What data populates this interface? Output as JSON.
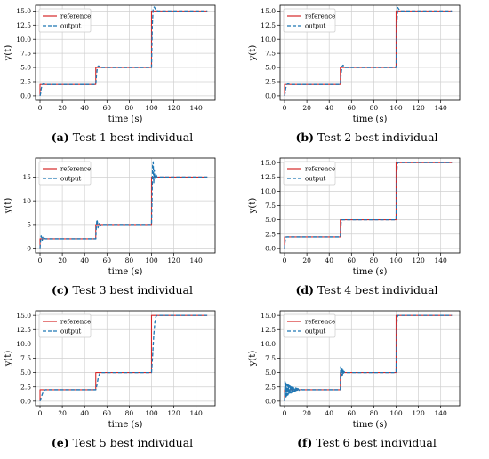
{
  "chart_data": [
    {
      "type": "line",
      "caption_tag": "(a)",
      "caption_text": "Test 1 best individual",
      "xlabel": "time (s)",
      "ylabel": "y(t)",
      "xlim": [
        -4,
        157
      ],
      "ylim": [
        -0.8,
        16.0
      ],
      "xticks": [
        0,
        20,
        40,
        60,
        80,
        100,
        120,
        140
      ],
      "yticks": [
        0.0,
        2.5,
        5.0,
        7.5,
        10.0,
        12.5,
        15.0
      ],
      "ytick_labels": [
        "0.0",
        "2.5",
        "5.0",
        "7.5",
        "10.0",
        "12.5",
        "15.0"
      ],
      "grid": true,
      "legend": "top-left",
      "series": [
        {
          "name": "reference",
          "style": "solid",
          "color": "#d62728",
          "x": [
            0,
            0,
            50,
            50,
            100,
            100,
            150
          ],
          "y": [
            0,
            2,
            2,
            5,
            5,
            15,
            15
          ]
        },
        {
          "name": "output",
          "style": "dashed",
          "color": "#1f77b4",
          "x": [
            0,
            0.5,
            1,
            2,
            3,
            5,
            50,
            50.7,
            51.5,
            52.5,
            54,
            56,
            100,
            100.7,
            101.5,
            102.5,
            104,
            106,
            150
          ],
          "y": [
            0,
            0.4,
            1.2,
            2.0,
            2.1,
            2.0,
            2.0,
            3.8,
            5.1,
            5.3,
            5.0,
            5.0,
            5.0,
            12.5,
            15.5,
            15.7,
            15.1,
            15.0,
            15.0
          ]
        }
      ]
    },
    {
      "type": "line",
      "caption_tag": "(b)",
      "caption_text": "Test 2 best individual",
      "xlabel": "time (s)",
      "ylabel": "y(t)",
      "xlim": [
        -4,
        157
      ],
      "ylim": [
        -0.8,
        16.0
      ],
      "xticks": [
        0,
        20,
        40,
        60,
        80,
        100,
        120,
        140
      ],
      "yticks": [
        0.0,
        2.5,
        5.0,
        7.5,
        10.0,
        12.5,
        15.0
      ],
      "ytick_labels": [
        "0.0",
        "2.5",
        "5.0",
        "7.5",
        "10.0",
        "12.5",
        "15.0"
      ],
      "grid": true,
      "legend": "top-left",
      "series": [
        {
          "name": "reference",
          "style": "solid",
          "color": "#d62728",
          "x": [
            0,
            0,
            50,
            50,
            100,
            100,
            150
          ],
          "y": [
            0,
            2,
            2,
            5,
            5,
            15,
            15
          ]
        },
        {
          "name": "output",
          "style": "dashed",
          "color": "#1f77b4",
          "x": [
            0,
            0.5,
            1,
            2,
            3,
            5,
            50,
            50.7,
            51.5,
            52.5,
            54,
            56,
            100,
            100.7,
            101.5,
            102.5,
            104,
            106,
            150
          ],
          "y": [
            0,
            0.5,
            1.3,
            2.0,
            2.1,
            2.0,
            2.0,
            3.9,
            5.2,
            5.4,
            5.0,
            5.0,
            5.0,
            12.8,
            15.6,
            15.3,
            15.0,
            15.0,
            15.0
          ]
        }
      ]
    },
    {
      "type": "line",
      "caption_tag": "(c)",
      "caption_text": "Test 3 best individual",
      "xlabel": "time (s)",
      "ylabel": "y(t)",
      "xlim": [
        -4,
        157
      ],
      "ylim": [
        -1.0,
        19.0
      ],
      "xticks": [
        0,
        20,
        40,
        60,
        80,
        100,
        120,
        140
      ],
      "yticks": [
        0,
        5,
        10,
        15
      ],
      "ytick_labels": [
        "0",
        "5",
        "10",
        "15"
      ],
      "grid": true,
      "legend": "top-left",
      "series": [
        {
          "name": "reference",
          "style": "solid",
          "color": "#d62728",
          "x": [
            0,
            0,
            50,
            50,
            100,
            100,
            150
          ],
          "y": [
            0,
            2,
            2,
            5,
            5,
            15,
            15
          ]
        },
        {
          "name": "output",
          "style": "dashed",
          "color": "#1f77b4",
          "x": [
            0,
            0.5,
            1,
            1.5,
            2,
            2.5,
            3,
            4,
            5,
            6,
            50,
            50.5,
            51,
            51.5,
            52,
            53,
            54,
            56,
            100,
            100.5,
            101,
            101.5,
            102,
            102.5,
            103,
            104,
            105,
            107,
            150
          ],
          "y": [
            0,
            1.5,
            2.6,
            2.2,
            1.7,
            2.3,
            2.0,
            2.1,
            2.0,
            2.0,
            2.0,
            4.5,
            6.0,
            5.5,
            4.3,
            5.2,
            4.9,
            5.0,
            5.0,
            10.5,
            17.8,
            18.2,
            13.8,
            16.5,
            14.6,
            15.6,
            14.9,
            15.0,
            15.0
          ]
        }
      ]
    },
    {
      "type": "line",
      "caption_tag": "(d)",
      "caption_text": "Test 4 best individual",
      "xlabel": "time (s)",
      "ylabel": "y(t)",
      "xlim": [
        -4,
        157
      ],
      "ylim": [
        -0.8,
        15.8
      ],
      "xticks": [
        0,
        20,
        40,
        60,
        80,
        100,
        120,
        140
      ],
      "yticks": [
        0.0,
        2.5,
        5.0,
        7.5,
        10.0,
        12.5,
        15.0
      ],
      "ytick_labels": [
        "0.0",
        "2.5",
        "5.0",
        "7.5",
        "10.0",
        "12.5",
        "15.0"
      ],
      "grid": true,
      "legend": "top-left",
      "series": [
        {
          "name": "reference",
          "style": "solid",
          "color": "#d62728",
          "x": [
            0,
            0,
            50,
            50,
            100,
            100,
            150
          ],
          "y": [
            0,
            2,
            2,
            5,
            5,
            15,
            15
          ]
        },
        {
          "name": "output",
          "style": "dashed",
          "color": "#1f77b4",
          "x": [
            0,
            0.3,
            0.7,
            1.2,
            2,
            50,
            50.3,
            50.7,
            51.2,
            52,
            100,
            100.3,
            100.7,
            101.2,
            102,
            150
          ],
          "y": [
            0,
            0.8,
            1.6,
            1.95,
            2.0,
            2.0,
            3.0,
            4.4,
            4.95,
            5.0,
            5.0,
            9.0,
            13.5,
            14.9,
            15.0,
            15.0
          ]
        }
      ]
    },
    {
      "type": "line",
      "caption_tag": "(e)",
      "caption_text": "Test 5 best individual",
      "xlabel": "time (s)",
      "ylabel": "y(t)",
      "xlim": [
        -4,
        157
      ],
      "ylim": [
        -0.8,
        15.8
      ],
      "xticks": [
        0,
        20,
        40,
        60,
        80,
        100,
        120,
        140
      ],
      "yticks": [
        0.0,
        2.5,
        5.0,
        7.5,
        10.0,
        12.5,
        15.0
      ],
      "ytick_labels": [
        "0.0",
        "2.5",
        "5.0",
        "7.5",
        "10.0",
        "12.5",
        "15.0"
      ],
      "grid": true,
      "legend": "top-left",
      "series": [
        {
          "name": "reference",
          "style": "solid",
          "color": "#d62728",
          "x": [
            0,
            0,
            50,
            50,
            100,
            100,
            150
          ],
          "y": [
            0,
            2,
            2,
            5,
            5,
            15,
            15
          ]
        },
        {
          "name": "output",
          "style": "dashed",
          "color": "#1f77b4",
          "x": [
            0,
            1,
            2,
            3,
            4,
            5,
            50,
            51,
            52,
            53,
            54,
            100,
            101,
            102,
            103,
            104,
            105,
            150
          ],
          "y": [
            0,
            0.6,
            1.2,
            1.7,
            1.95,
            2.0,
            2.0,
            2.8,
            3.9,
            4.6,
            5.0,
            5.0,
            8.0,
            11.5,
            13.8,
            14.8,
            15.0,
            15.0
          ]
        }
      ]
    },
    {
      "type": "line",
      "caption_tag": "(f)",
      "caption_text": "Test 6 best individual",
      "xlabel": "time (s)",
      "ylabel": "y(t)",
      "xlim": [
        -4,
        157
      ],
      "ylim": [
        -0.8,
        15.8
      ],
      "xticks": [
        0,
        20,
        40,
        60,
        80,
        100,
        120,
        140
      ],
      "yticks": [
        0.0,
        2.5,
        5.0,
        7.5,
        10.0,
        12.5,
        15.0
      ],
      "ytick_labels": [
        "0.0",
        "2.5",
        "5.0",
        "7.5",
        "10.0",
        "12.5",
        "15.0"
      ],
      "grid": true,
      "legend": "top-left",
      "series": [
        {
          "name": "reference",
          "style": "solid",
          "color": "#d62728",
          "x": [
            0,
            0,
            50,
            50,
            100,
            100,
            150
          ],
          "y": [
            0,
            2,
            2,
            5,
            5,
            15,
            15
          ]
        },
        {
          "name": "output",
          "style": "dashed",
          "color": "#1f77b4",
          "x": [
            0,
            0.4,
            0.8,
            1.2,
            1.6,
            2.0,
            2.4,
            2.8,
            3.2,
            3.6,
            4.0,
            4.4,
            4.8,
            5.2,
            5.6,
            6.0,
            6.5,
            7.0,
            7.5,
            8.0,
            8.5,
            9.0,
            9.5,
            10.0,
            10.5,
            11.0,
            11.5,
            12.0,
            13.0,
            14.0,
            16.0,
            50,
            50.3,
            50.6,
            51.0,
            51.3,
            51.6,
            52.0,
            52.4,
            52.8,
            53.3,
            54,
            100,
            100.4,
            100.8,
            101.2,
            101.8,
            150
          ],
          "y": [
            0,
            3.5,
            0.5,
            3.2,
            0.8,
            3.0,
            1.0,
            2.9,
            1.1,
            2.8,
            1.2,
            2.7,
            1.3,
            2.6,
            1.4,
            2.5,
            1.5,
            2.45,
            1.6,
            2.4,
            1.65,
            2.35,
            1.7,
            2.3,
            1.75,
            2.25,
            1.8,
            2.2,
            1.9,
            2.1,
            2.0,
            2.0,
            6.0,
            4.2,
            5.8,
            4.4,
            5.6,
            4.6,
            5.4,
            4.8,
            5.2,
            5.0,
            5.0,
            10.0,
            14.0,
            14.8,
            15.0,
            15.0
          ]
        }
      ]
    }
  ]
}
